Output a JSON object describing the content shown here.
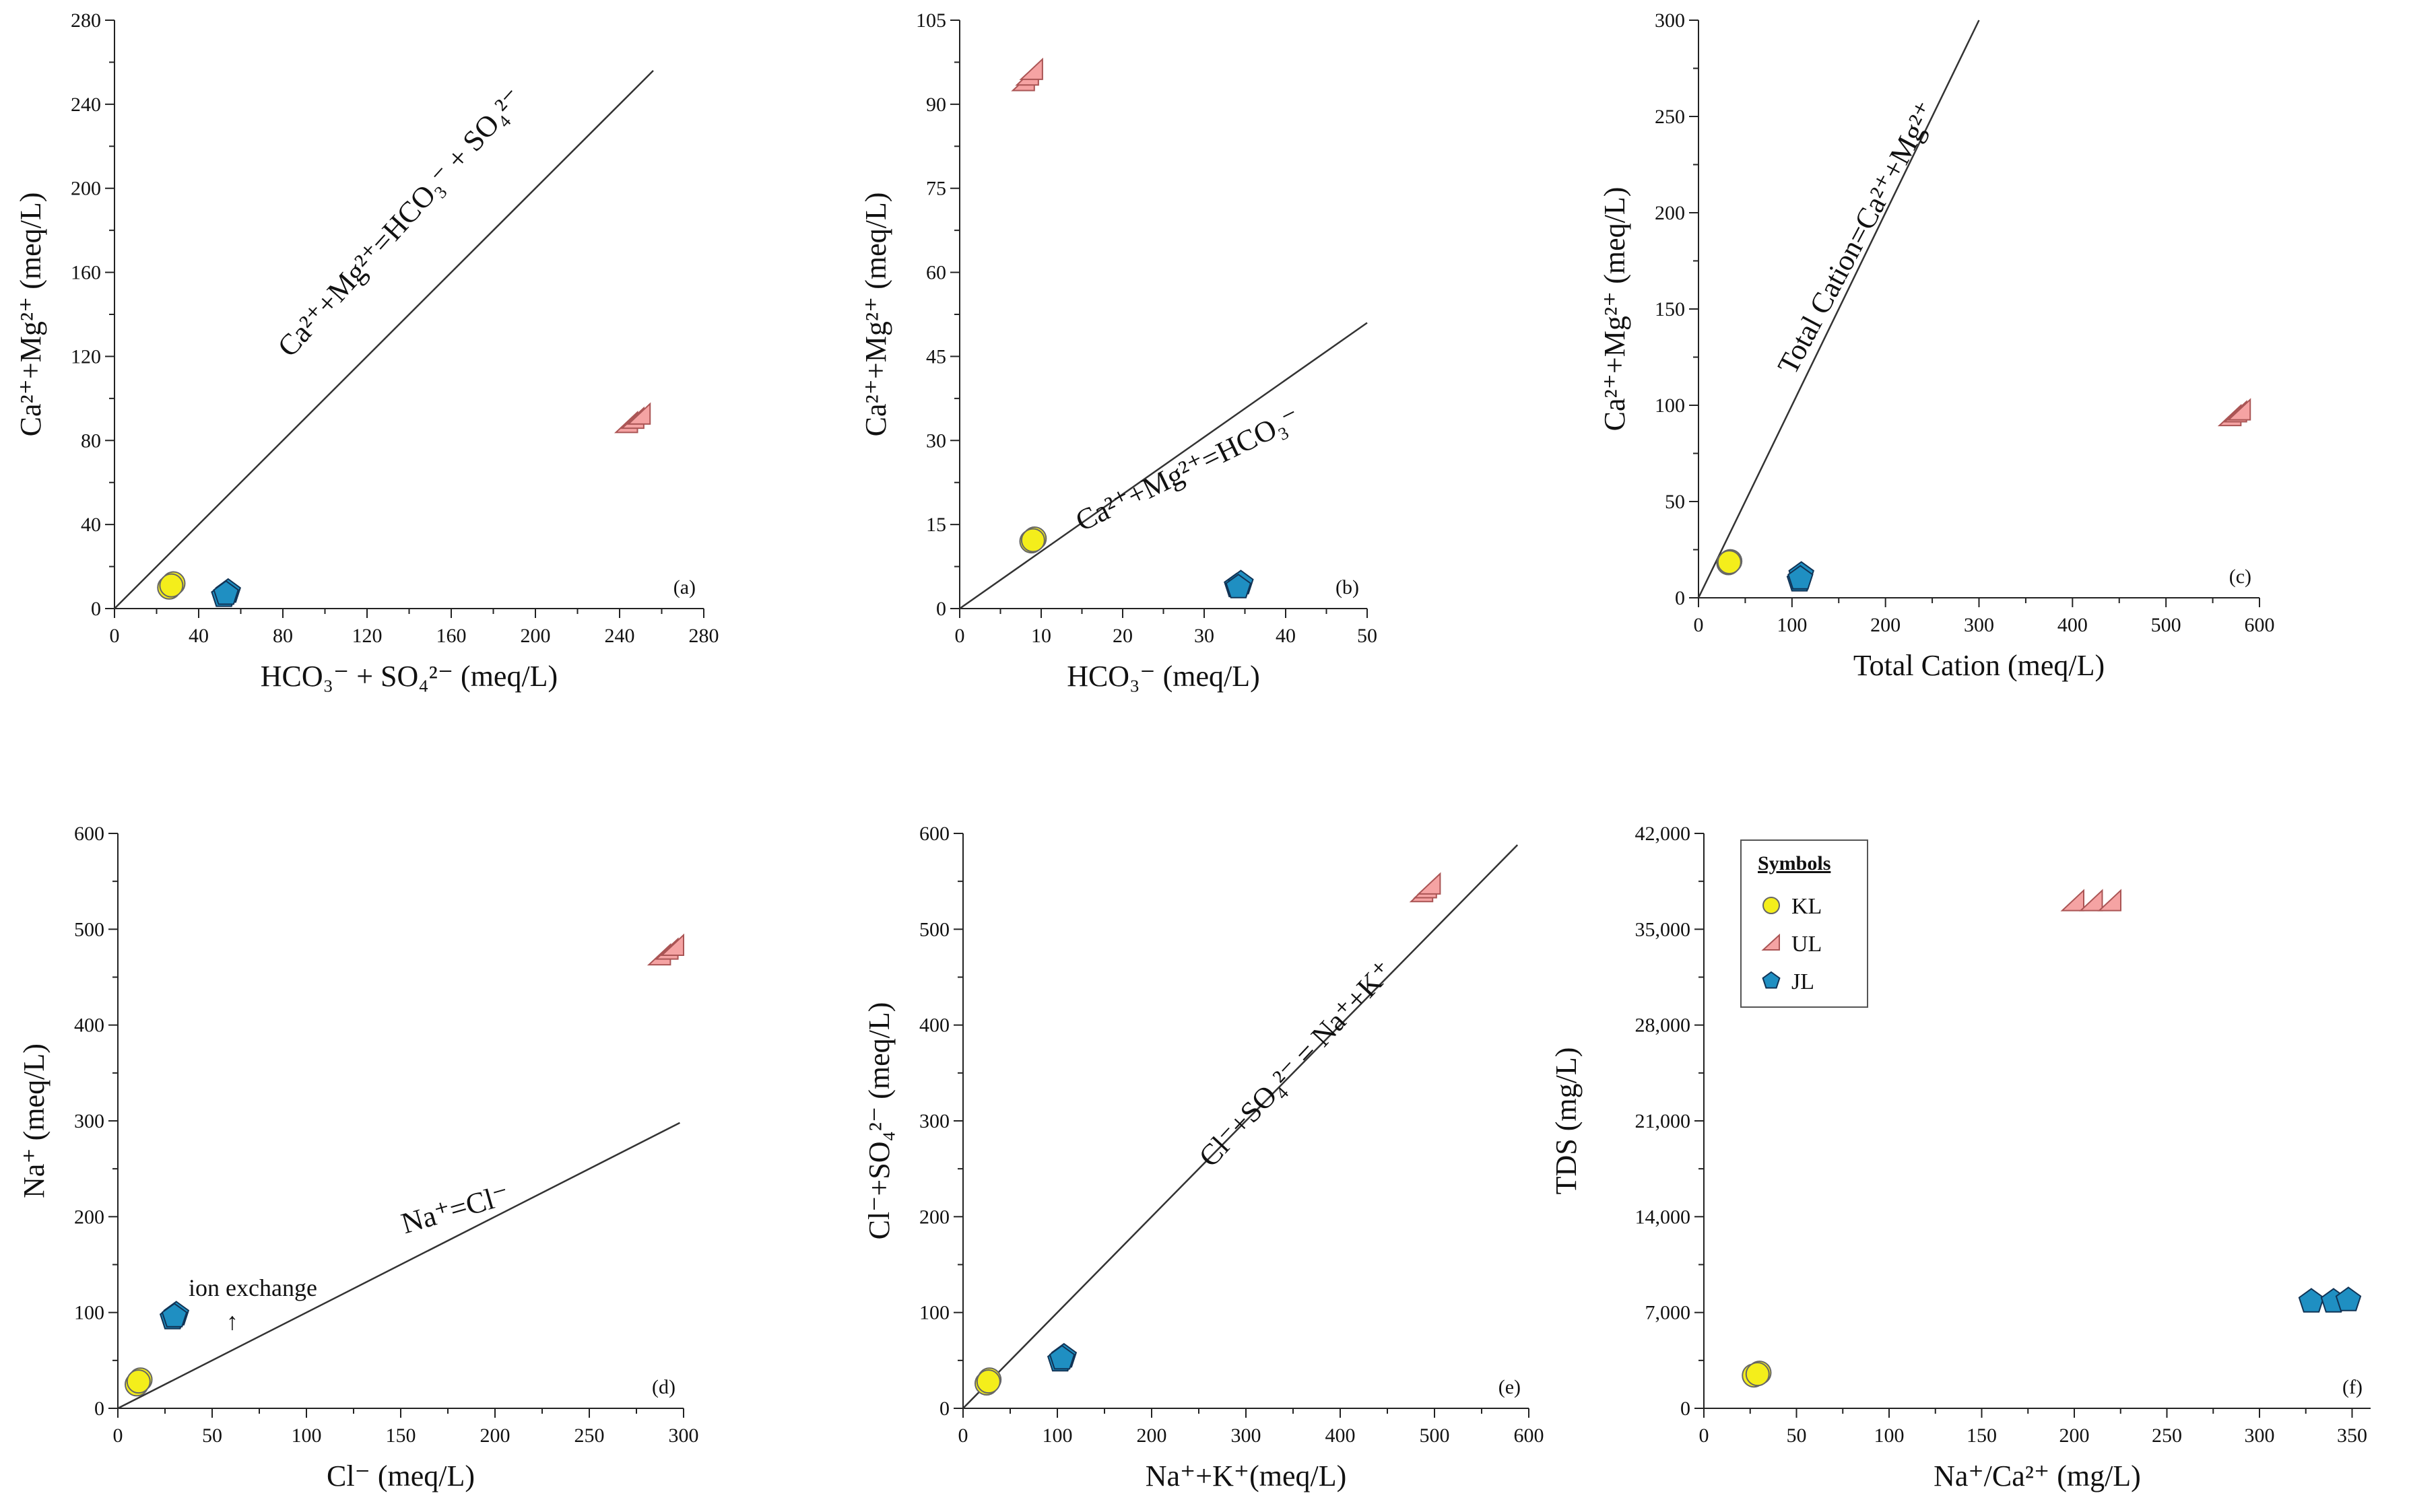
{
  "colors": {
    "KL": "#f4ee1b",
    "UL": "#f5a3a3",
    "JL": "#1f8fc2",
    "axis": "#222222"
  },
  "chart_data": [
    {
      "id": "a",
      "type": "scatter",
      "tag": "(a)",
      "xlabel": "HCO₃⁻ + SO₄²⁻ (meq/L)",
      "ylabel": "Ca²⁺+Mg²⁺ (meq/L)",
      "xlim": [
        0,
        280
      ],
      "ylim": [
        0,
        280
      ],
      "xticks": [
        "0",
        "40",
        "80",
        "120",
        "160",
        "200",
        "240",
        "280"
      ],
      "yticks": [
        "0",
        "40",
        "80",
        "120",
        "160",
        "200",
        "240",
        "280"
      ],
      "line": {
        "label": "Ca²⁺+Mg²⁺=HCO₃⁻ + SO₄²⁻",
        "x": [
          0,
          256
        ],
        "y": [
          0,
          256
        ]
      },
      "series": [
        {
          "name": "KL",
          "points": [
            [
              26,
              10
            ],
            [
              28,
              12
            ],
            [
              27,
              11
            ]
          ]
        },
        {
          "name": "UL",
          "points": [
            [
              244,
              88
            ],
            [
              247,
              90
            ],
            [
              250,
              92
            ]
          ]
        },
        {
          "name": "JL",
          "points": [
            [
              52,
              6
            ],
            [
              54,
              8
            ],
            [
              53,
              7
            ]
          ]
        }
      ]
    },
    {
      "id": "b",
      "type": "scatter",
      "tag": "(b)",
      "xlabel": "HCO₃⁻ (meq/L)",
      "ylabel": "Ca²⁺+Mg²⁺ (meq/L)",
      "xlim": [
        0,
        50
      ],
      "ylim": [
        0,
        105
      ],
      "xticks": [
        "0",
        "10",
        "20",
        "30",
        "40",
        "50"
      ],
      "yticks": [
        "0",
        "15",
        "30",
        "45",
        "60",
        "75",
        "90",
        "105"
      ],
      "line": {
        "label": "Ca²⁺+Mg²⁺=HCO₃⁻",
        "x": [
          0,
          50
        ],
        "y": [
          0,
          51
        ]
      },
      "series": [
        {
          "name": "KL",
          "points": [
            [
              8.8,
              12
            ],
            [
              9.2,
              12.5
            ],
            [
              9,
              12.2
            ]
          ]
        },
        {
          "name": "UL",
          "points": [
            [
              8,
              94
            ],
            [
              8.5,
              95
            ],
            [
              9,
              96
            ]
          ]
        },
        {
          "name": "JL",
          "points": [
            [
              34,
              4
            ],
            [
              34.5,
              4.5
            ],
            [
              34.2,
              3.8
            ]
          ]
        }
      ]
    },
    {
      "id": "c",
      "type": "scatter",
      "tag": "(c)",
      "xlabel": "Total Cation (meq/L)",
      "ylabel": "Ca²⁺+Mg²⁺ (meq/L)",
      "xlim": [
        0,
        600
      ],
      "ylim": [
        0,
        300
      ],
      "xticks": [
        "0",
        "100",
        "200",
        "300",
        "400",
        "500",
        "600"
      ],
      "yticks": [
        "0",
        "50",
        "100",
        "150",
        "200",
        "250",
        "300"
      ],
      "line": {
        "label": "Total Cation=Ca²⁺+Mg²⁺",
        "x": [
          0,
          300
        ],
        "y": [
          0,
          300
        ]
      },
      "series": [
        {
          "name": "KL",
          "points": [
            [
              32,
              18
            ],
            [
              34,
              19
            ],
            [
              33,
              18.5
            ]
          ]
        },
        {
          "name": "UL",
          "points": [
            [
              570,
              94
            ],
            [
              576,
              96
            ],
            [
              580,
              97
            ]
          ]
        },
        {
          "name": "JL",
          "points": [
            [
              108,
              9
            ],
            [
              110,
              12
            ],
            [
              109,
              10
            ]
          ]
        }
      ]
    },
    {
      "id": "d",
      "type": "scatter",
      "tag": "(d)",
      "xlabel": "Cl⁻ (meq/L)",
      "ylabel": "Na⁺ (meq/L)",
      "xlim": [
        0,
        300
      ],
      "ylim": [
        0,
        600
      ],
      "xticks": [
        "0",
        "50",
        "100",
        "150",
        "200",
        "250",
        "300"
      ],
      "yticks": [
        "0",
        "100",
        "200",
        "300",
        "400",
        "500",
        "600"
      ],
      "line": {
        "label": "Na⁺=Cl⁻",
        "x": [
          0,
          298
        ],
        "y": [
          0,
          298
        ]
      },
      "annotation": {
        "text": "ion exchange",
        "arrow": "↑"
      },
      "series": [
        {
          "name": "KL",
          "points": [
            [
              10,
              25
            ],
            [
              12,
              30
            ],
            [
              11,
              28
            ]
          ]
        },
        {
          "name": "UL",
          "points": [
            [
              288,
              472
            ],
            [
              292,
              478
            ],
            [
              295,
              482
            ]
          ]
        },
        {
          "name": "JL",
          "points": [
            [
              29,
              94
            ],
            [
              31,
              98
            ],
            [
              30,
              96
            ]
          ]
        }
      ]
    },
    {
      "id": "e",
      "type": "scatter",
      "tag": "(e)",
      "xlabel": "Na⁺+K⁺(meq/L)",
      "ylabel": "Cl⁻+SO₄²⁻ (meq/L)",
      "xlim": [
        0,
        600
      ],
      "ylim": [
        0,
        600
      ],
      "xticks": [
        "0",
        "100",
        "200",
        "300",
        "400",
        "500",
        "600"
      ],
      "yticks": [
        "0",
        "100",
        "200",
        "300",
        "400",
        "500",
        "600"
      ],
      "line": {
        "label": "Cl⁻+SO₄²⁻ = Na⁺+K⁺",
        "x": [
          0,
          588
        ],
        "y": [
          0,
          588
        ]
      },
      "series": [
        {
          "name": "KL",
          "points": [
            [
              25,
              26
            ],
            [
              28,
              30
            ],
            [
              27,
              28
            ]
          ]
        },
        {
          "name": "UL",
          "points": [
            [
              488,
              538
            ],
            [
              492,
              542
            ],
            [
              496,
              546
            ]
          ]
        },
        {
          "name": "JL",
          "points": [
            [
              103,
              50
            ],
            [
              107,
              54
            ],
            [
              105,
              52
            ]
          ]
        }
      ]
    },
    {
      "id": "f",
      "type": "scatter",
      "tag": "(f)",
      "xlabel": "Na⁺/Ca²⁺ (mg/L)",
      "ylabel": "TDS (mg/L)",
      "xlim": [
        0,
        360
      ],
      "ylim": [
        0,
        42000
      ],
      "xticks": [
        "0",
        "50",
        "100",
        "150",
        "200",
        "250",
        "300",
        "350"
      ],
      "yticks": [
        "0",
        "7,000",
        "14,000",
        "21,000",
        "28,000",
        "35,000",
        "42,000"
      ],
      "legend": {
        "title": "Symbols",
        "entries": [
          "KL",
          "UL",
          "JL"
        ],
        "placement": "top-left"
      },
      "series": [
        {
          "name": "KL",
          "points": [
            [
              27,
              2400
            ],
            [
              30,
              2600
            ],
            [
              29,
              2500
            ]
          ]
        },
        {
          "name": "UL",
          "points": [
            [
              200,
              37000
            ],
            [
              210,
              37000
            ],
            [
              220,
              37000
            ]
          ]
        },
        {
          "name": "JL",
          "points": [
            [
              328,
              7800
            ],
            [
              340,
              7800
            ],
            [
              348,
              7900
            ]
          ]
        }
      ]
    }
  ]
}
